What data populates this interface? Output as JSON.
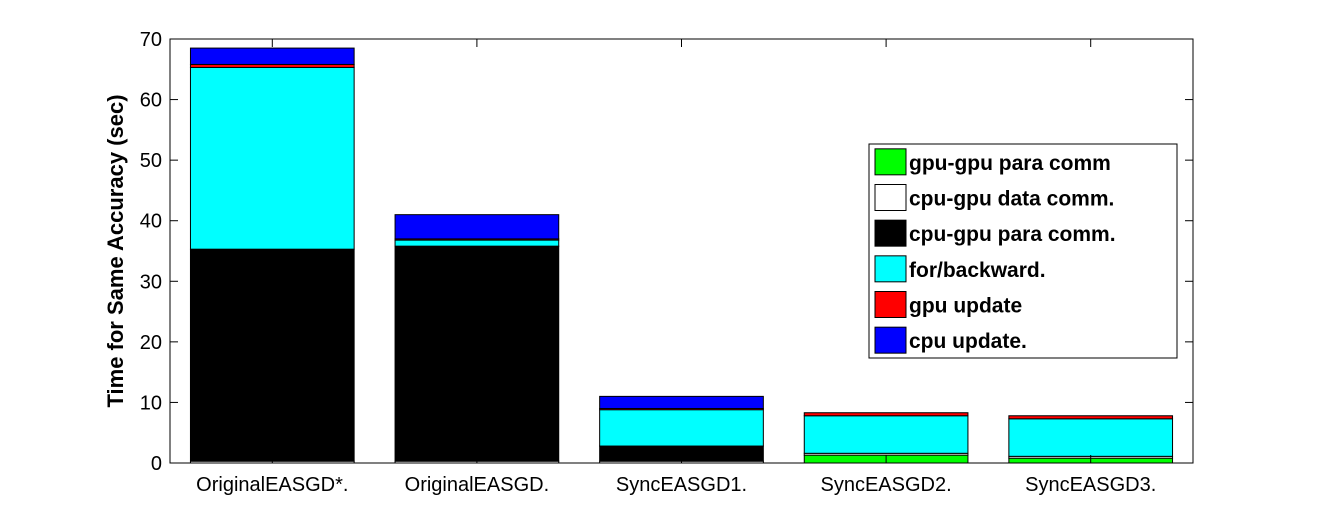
{
  "chart_data": {
    "type": "bar",
    "stacked": true,
    "title": "",
    "xlabel": "",
    "ylabel": "Time for Same Accuracy (sec)",
    "ylim": [
      0,
      70
    ],
    "yticks": [
      0,
      10,
      20,
      30,
      40,
      50,
      60,
      70
    ],
    "grid": false,
    "legend_position": "right",
    "categories": [
      "OriginalEASGD*.",
      "OriginalEASGD.",
      "SyncEASGD1.",
      "SyncEASGD2.",
      "SyncEASGD3."
    ],
    "series": [
      {
        "name": "gpu-gpu para comm",
        "color": "#00ff00",
        "values": [
          0,
          0,
          0,
          1.3,
          0.8
        ]
      },
      {
        "name": "cpu-gpu data comm.",
        "color": "#ffffff",
        "values": [
          0.3,
          0.3,
          0.3,
          0.3,
          0.3
        ]
      },
      {
        "name": "cpu-gpu para comm.",
        "color": "#000000",
        "values": [
          35.0,
          35.5,
          2.5,
          0,
          0
        ]
      },
      {
        "name": "for/backward.",
        "color": "#00ffff",
        "values": [
          30.0,
          1.0,
          6.0,
          6.2,
          6.2
        ]
      },
      {
        "name": "gpu update",
        "color": "#ff0000",
        "values": [
          0.5,
          0.2,
          0.2,
          0.5,
          0.5
        ]
      },
      {
        "name": "cpu update.",
        "color": "#0000ff",
        "values": [
          2.7,
          4.0,
          2.0,
          0,
          0
        ]
      }
    ]
  }
}
